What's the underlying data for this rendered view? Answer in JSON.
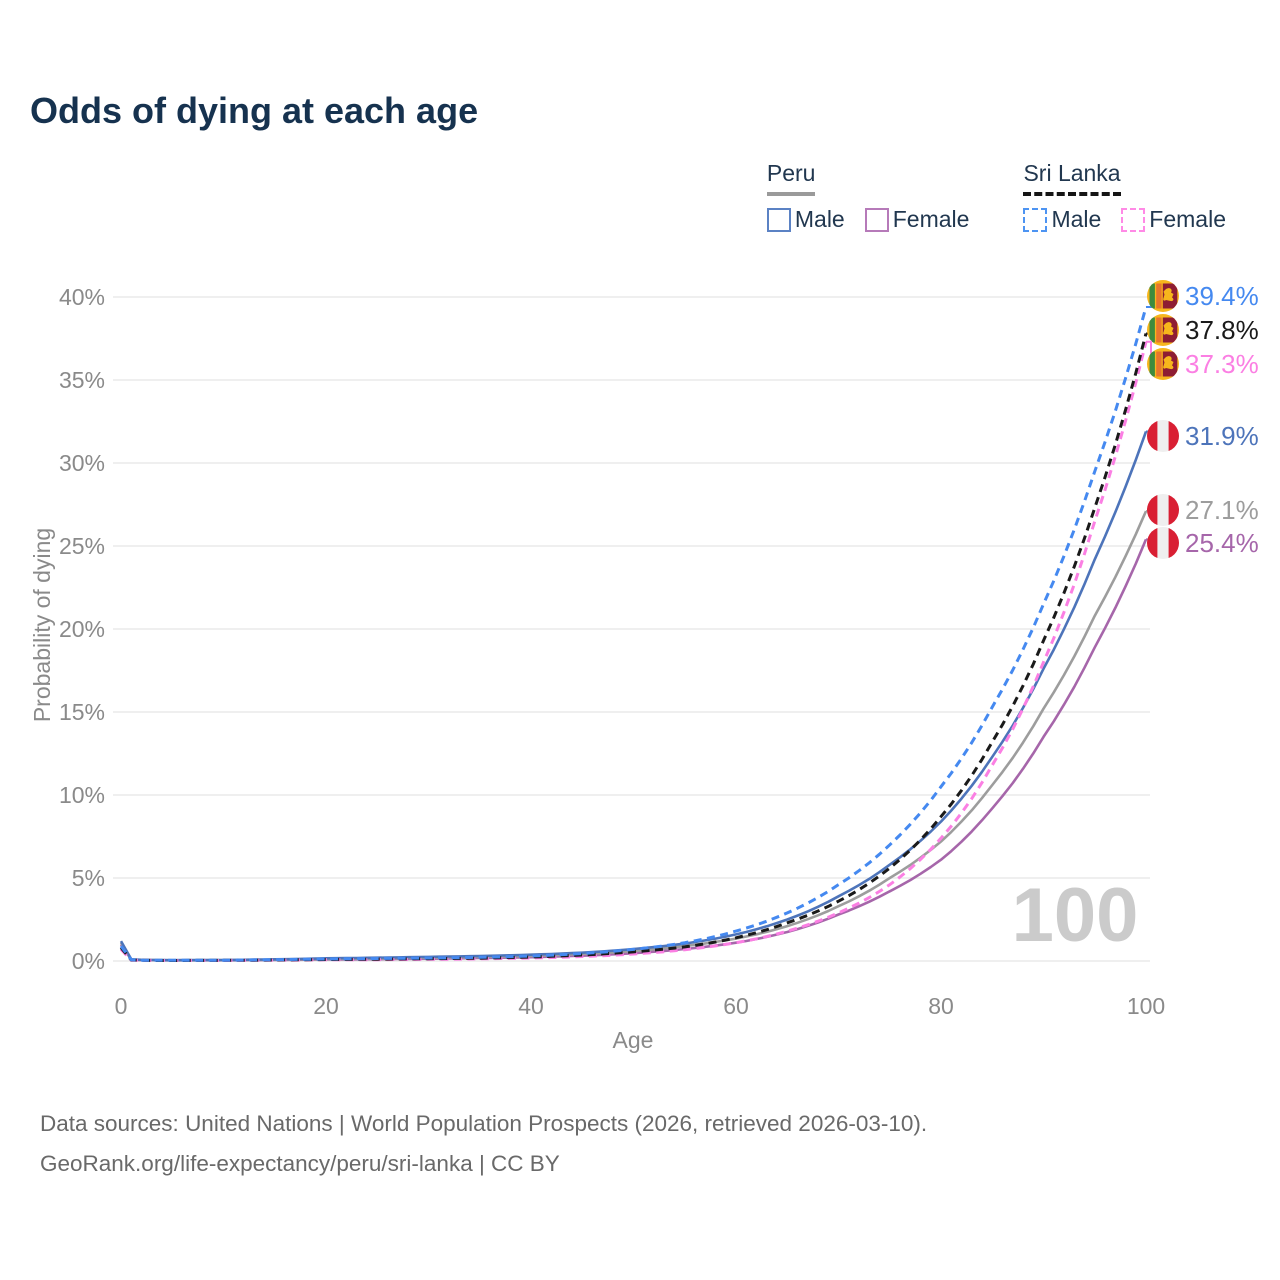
{
  "title": "Odds of dying at each age",
  "legend": {
    "groups": [
      {
        "country": "Peru",
        "line_style": "solid",
        "underline_color": "#9a9a9a",
        "items": [
          {
            "label": "Male",
            "color": "#4d74ba"
          },
          {
            "label": "Female",
            "color": "#a666aa"
          }
        ]
      },
      {
        "country": "Sri Lanka",
        "line_style": "dashed",
        "underline_color": "#151515",
        "items": [
          {
            "label": "Male",
            "color": "#4589f0"
          },
          {
            "label": "Female",
            "color": "#fb7fe3"
          }
        ]
      }
    ]
  },
  "watermark": "100",
  "footer": {
    "line1": "Data sources: United Nations | World Population Prospects (2026, retrieved 2026-03-10).",
    "line2": "GeoRank.org/life-expectancy/peru/sri-lanka | CC BY"
  },
  "chart_data": {
    "type": "line",
    "title": "Odds of dying at each age",
    "xlabel": "Age",
    "ylabel": "Probability of dying",
    "xlim": [
      0,
      100
    ],
    "ylim": [
      0,
      40
    ],
    "grid": "horizontal",
    "legend_position": "top-right",
    "xticks": [
      {
        "label": "0",
        "value": 0
      },
      {
        "label": "20",
        "value": 20
      },
      {
        "label": "40",
        "value": 40
      },
      {
        "label": "60",
        "value": 60
      },
      {
        "label": "80",
        "value": 80
      },
      {
        "label": "100",
        "value": 100
      }
    ],
    "yticks": [
      {
        "label": "0%",
        "value": 0
      },
      {
        "label": "5%",
        "value": 5
      },
      {
        "label": "10%",
        "value": 10
      },
      {
        "label": "15%",
        "value": 15
      },
      {
        "label": "20%",
        "value": 20
      },
      {
        "label": "25%",
        "value": 25
      },
      {
        "label": "30%",
        "value": 30
      },
      {
        "label": "35%",
        "value": 35
      },
      {
        "label": "40%",
        "value": 40
      }
    ],
    "series": [
      {
        "name": "Sri Lanka Male",
        "country": "Sri Lanka",
        "sex": "Male",
        "color": "#4589f0",
        "dash": "dashed",
        "flag": "sri-lanka-flag",
        "end_label": "39.4%",
        "end_value": 39.4,
        "x": [
          0,
          1,
          2,
          5,
          10,
          15,
          20,
          25,
          30,
          35,
          40,
          45,
          50,
          55,
          60,
          65,
          70,
          75,
          80,
          85,
          90,
          95,
          100
        ],
        "y": [
          0.9,
          0.07,
          0.05,
          0.04,
          0.05,
          0.08,
          0.12,
          0.15,
          0.18,
          0.22,
          0.3,
          0.45,
          0.7,
          1.1,
          1.8,
          2.9,
          4.6,
          7.0,
          10.5,
          15.3,
          21.5,
          29.5,
          39.4
        ]
      },
      {
        "name": "Sri Lanka Both sexes",
        "country": "Sri Lanka",
        "sex": "Both",
        "color": "#1a1a1a",
        "dash": "dashed",
        "flag": "sri-lanka-flag",
        "end_label": "37.8%",
        "end_value": 37.8,
        "x": [
          0,
          1,
          2,
          5,
          10,
          15,
          20,
          25,
          30,
          35,
          40,
          45,
          50,
          55,
          60,
          65,
          70,
          75,
          80,
          85,
          90,
          95,
          100
        ],
        "y": [
          0.8,
          0.06,
          0.04,
          0.03,
          0.04,
          0.06,
          0.09,
          0.11,
          0.14,
          0.17,
          0.24,
          0.36,
          0.55,
          0.85,
          1.4,
          2.3,
          3.6,
          5.6,
          8.7,
          13.2,
          19.3,
          27.3,
          37.8
        ]
      },
      {
        "name": "Sri Lanka Female",
        "country": "Sri Lanka",
        "sex": "Female",
        "color": "#fb7fe3",
        "dash": "dashed",
        "flag": "sri-lanka-flag",
        "end_label": "37.3%",
        "end_value": 37.3,
        "x": [
          0,
          1,
          2,
          5,
          10,
          15,
          20,
          25,
          30,
          35,
          40,
          45,
          50,
          55,
          60,
          65,
          70,
          75,
          80,
          85,
          90,
          95,
          100
        ],
        "y": [
          0.7,
          0.05,
          0.04,
          0.03,
          0.03,
          0.05,
          0.07,
          0.08,
          0.1,
          0.13,
          0.18,
          0.27,
          0.42,
          0.68,
          1.1,
          1.8,
          2.9,
          4.6,
          7.4,
          11.8,
          18.0,
          26.5,
          37.3
        ]
      },
      {
        "name": "Peru Male",
        "country": "Peru",
        "sex": "Male",
        "color": "#4d74ba",
        "dash": "solid",
        "flag": "peru-flag",
        "end_label": "31.9%",
        "end_value": 31.9,
        "x": [
          0,
          1,
          2,
          5,
          10,
          15,
          20,
          25,
          30,
          35,
          40,
          45,
          50,
          55,
          60,
          65,
          70,
          75,
          80,
          85,
          90,
          95,
          100
        ],
        "y": [
          1.2,
          0.1,
          0.07,
          0.05,
          0.06,
          0.1,
          0.16,
          0.2,
          0.25,
          0.3,
          0.38,
          0.5,
          0.72,
          1.05,
          1.6,
          2.5,
          3.9,
          5.8,
          8.4,
          12.3,
          17.6,
          24.2,
          31.9
        ]
      },
      {
        "name": "Peru Both sexes",
        "country": "Peru",
        "sex": "Both",
        "color": "#9d9d9d",
        "dash": "solid",
        "flag": "peru-flag",
        "end_label": "27.1%",
        "end_value": 27.1,
        "x": [
          0,
          1,
          2,
          5,
          10,
          15,
          20,
          25,
          30,
          35,
          40,
          45,
          50,
          55,
          60,
          65,
          70,
          75,
          80,
          85,
          90,
          95,
          100
        ],
        "y": [
          1.1,
          0.09,
          0.06,
          0.04,
          0.05,
          0.08,
          0.12,
          0.15,
          0.19,
          0.24,
          0.3,
          0.42,
          0.6,
          0.9,
          1.35,
          2.1,
          3.3,
          5.0,
          7.2,
          10.6,
          15.2,
          20.8,
          27.1
        ]
      },
      {
        "name": "Peru Female",
        "country": "Peru",
        "sex": "Female",
        "color": "#a666aa",
        "dash": "solid",
        "flag": "peru-flag",
        "end_label": "25.4%",
        "end_value": 25.4,
        "x": [
          0,
          1,
          2,
          5,
          10,
          15,
          20,
          25,
          30,
          35,
          40,
          45,
          50,
          55,
          60,
          65,
          70,
          75,
          80,
          85,
          90,
          95,
          100
        ],
        "y": [
          1.0,
          0.08,
          0.05,
          0.04,
          0.04,
          0.06,
          0.09,
          0.11,
          0.14,
          0.18,
          0.23,
          0.32,
          0.47,
          0.72,
          1.1,
          1.75,
          2.8,
          4.2,
          6.1,
          9.2,
          13.5,
          18.9,
          25.4
        ]
      }
    ]
  },
  "colors": {
    "title": "#16324f",
    "legend_text": "#21374f",
    "axis_text": "#8a8a8a",
    "gridline": "#eaeaea",
    "watermark": "#cbcbcb",
    "footer_text": "#696969",
    "peru_flag_red": "#d91f33",
    "sri_lanka_yellow": "#f7b61c",
    "sri_lanka_green": "#3e8b3e",
    "sri_lanka_orange": "#e8762d",
    "sri_lanka_maroon": "#8e1d33"
  }
}
